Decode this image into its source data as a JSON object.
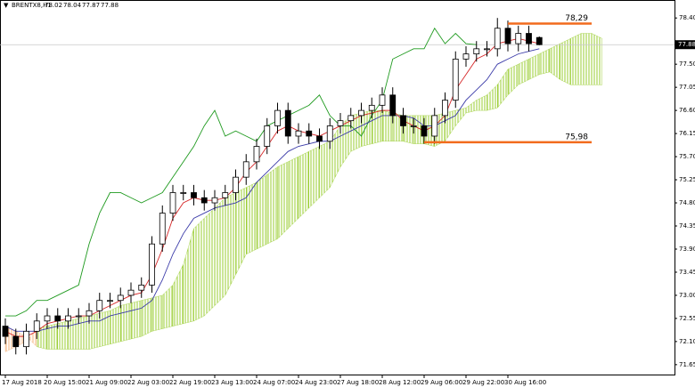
{
  "chart_data": {
    "type": "candlestick",
    "symbol": "BRENTX8,H1",
    "ohlc": [
      78.02,
      78.04,
      77.87,
      77.88
    ],
    "categories": [
      "17 Aug 2018",
      null,
      null,
      null,
      "20 Aug 15:00",
      null,
      null,
      null,
      "21 Aug 09:00",
      null,
      null,
      null,
      "22 Aug 03:00",
      null,
      null,
      null,
      "22 Aug 19:00",
      null,
      null,
      null,
      "23 Aug 13:00",
      null,
      null,
      null,
      "24 Aug 07:00",
      null,
      null,
      null,
      "24 Aug 23:00",
      null,
      null,
      null,
      "27 Aug 18:00",
      null,
      null,
      null,
      "28 Aug 12:00",
      null,
      null,
      null,
      "29 Aug 06:00",
      null,
      null,
      null,
      "29 Aug 22:00",
      null,
      null,
      null,
      "30 Aug 16:00",
      null,
      null,
      null,
      null,
      null,
      null,
      null,
      null,
      null
    ],
    "open": [
      72.4,
      72.2,
      72.0,
      72.3,
      72.5,
      72.6,
      72.5,
      72.6,
      72.6,
      72.7,
      72.9,
      72.9,
      73.0,
      73.1,
      73.2,
      74.0,
      74.6,
      75.0,
      75.0,
      74.9,
      74.8,
      74.9,
      75.0,
      75.3,
      75.6,
      75.9,
      76.3,
      76.6,
      76.1,
      76.2,
      76.1,
      76.0,
      76.3,
      76.4,
      76.5,
      76.6,
      76.7,
      76.9,
      76.5,
      76.3,
      76.3,
      76.1,
      76.5,
      76.8,
      77.6,
      77.7,
      77.8,
      77.8,
      78.2,
      77.9,
      78.1,
      78.02,
      null,
      null,
      null,
      null,
      null,
      null
    ],
    "high": [
      72.55,
      72.35,
      72.45,
      72.65,
      72.75,
      72.75,
      72.75,
      72.75,
      72.85,
      73.05,
      73.05,
      73.15,
      73.25,
      73.35,
      74.15,
      74.75,
      75.15,
      75.15,
      75.15,
      75.05,
      75.05,
      75.15,
      75.45,
      75.75,
      76.05,
      76.45,
      76.75,
      76.75,
      76.35,
      76.35,
      76.25,
      76.45,
      76.55,
      76.65,
      76.75,
      76.85,
      77.05,
      77.05,
      76.65,
      76.45,
      76.45,
      76.65,
      76.95,
      77.75,
      77.85,
      77.95,
      77.95,
      78.4,
      78.35,
      78.25,
      78.25,
      78.04,
      null,
      null,
      null,
      null,
      null,
      null
    ],
    "low": [
      72.05,
      71.85,
      71.85,
      72.15,
      72.35,
      72.35,
      72.35,
      72.45,
      72.45,
      72.55,
      72.75,
      72.75,
      72.85,
      72.95,
      73.05,
      73.85,
      74.45,
      74.85,
      74.75,
      74.65,
      74.65,
      74.75,
      74.85,
      75.15,
      75.45,
      75.75,
      76.15,
      75.95,
      75.95,
      75.95,
      75.85,
      75.85,
      76.15,
      76.25,
      76.35,
      76.45,
      76.55,
      76.35,
      76.15,
      76.15,
      75.95,
      75.95,
      76.35,
      76.65,
      77.45,
      77.55,
      77.65,
      77.65,
      77.75,
      77.75,
      77.75,
      77.87,
      null,
      null,
      null,
      null,
      null,
      null
    ],
    "close": [
      72.2,
      72.0,
      72.3,
      72.5,
      72.6,
      72.5,
      72.6,
      72.6,
      72.7,
      72.9,
      72.9,
      73.0,
      73.1,
      73.2,
      74.0,
      74.6,
      75.0,
      75.0,
      74.9,
      74.8,
      74.9,
      75.0,
      75.3,
      75.6,
      75.9,
      76.3,
      76.6,
      76.1,
      76.2,
      76.1,
      76.0,
      76.3,
      76.4,
      76.5,
      76.6,
      76.7,
      76.9,
      76.5,
      76.3,
      76.3,
      76.1,
      76.5,
      76.8,
      77.6,
      77.7,
      77.8,
      77.8,
      78.2,
      77.9,
      78.1,
      77.9,
      77.88,
      null,
      null,
      null,
      null,
      null,
      null
    ],
    "tenkan": {
      "color": "#d62728",
      "values": [
        72.3,
        72.2,
        72.2,
        72.3,
        72.45,
        72.5,
        72.55,
        72.6,
        72.6,
        72.7,
        72.8,
        72.9,
        73.0,
        73.05,
        73.4,
        73.9,
        74.5,
        74.8,
        74.9,
        74.85,
        74.85,
        74.9,
        75.1,
        75.4,
        75.6,
        75.9,
        76.2,
        76.3,
        76.2,
        76.15,
        76.1,
        76.2,
        76.3,
        76.4,
        76.5,
        76.55,
        76.6,
        76.6,
        76.4,
        76.3,
        76.2,
        76.3,
        76.5,
        77.0,
        77.3,
        77.6,
        77.7,
        77.9,
        77.95,
        78.0,
        77.95,
        77.9,
        null,
        null,
        null,
        null,
        null,
        null
      ]
    },
    "kijun": {
      "color": "#3a3aa8",
      "values": [
        72.4,
        72.3,
        72.3,
        72.3,
        72.35,
        72.4,
        72.4,
        72.45,
        72.5,
        72.5,
        72.6,
        72.65,
        72.7,
        72.75,
        72.9,
        73.3,
        73.8,
        74.2,
        74.5,
        74.6,
        74.7,
        74.75,
        74.8,
        74.9,
        75.2,
        75.4,
        75.6,
        75.8,
        75.9,
        75.95,
        76.0,
        76.0,
        76.1,
        76.2,
        76.3,
        76.4,
        76.5,
        76.5,
        76.5,
        76.45,
        76.3,
        76.3,
        76.4,
        76.5,
        76.8,
        77.0,
        77.2,
        77.5,
        77.6,
        77.7,
        77.75,
        77.8,
        null,
        null,
        null,
        null,
        null,
        null
      ]
    },
    "chikou": {
      "color": "#1f9a1f",
      "values": [
        72.6,
        72.6,
        72.7,
        72.9,
        72.9,
        73.0,
        73.1,
        73.2,
        74.0,
        74.6,
        75.0,
        75.0,
        74.9,
        74.8,
        74.9,
        75.0,
        75.3,
        75.6,
        75.9,
        76.3,
        76.6,
        76.1,
        76.2,
        76.1,
        76.0,
        76.3,
        76.4,
        76.5,
        76.6,
        76.7,
        76.9,
        76.5,
        76.3,
        76.3,
        76.1,
        76.5,
        76.8,
        77.6,
        77.7,
        77.8,
        77.8,
        78.2,
        77.9,
        78.1,
        77.9,
        77.88,
        null,
        null,
        null,
        null,
        null,
        null,
        null,
        null,
        null,
        null,
        null,
        null
      ]
    },
    "span_a": [
      71.9,
      72.0,
      72.1,
      72.35,
      72.4,
      72.45,
      72.5,
      72.55,
      72.6,
      72.65,
      72.7,
      72.8,
      72.85,
      72.9,
      72.95,
      73.0,
      73.2,
      73.6,
      74.3,
      74.5,
      74.7,
      74.9,
      75.0,
      75.1,
      75.2,
      75.35,
      75.5,
      75.6,
      75.7,
      75.8,
      75.9,
      76.0,
      76.3,
      76.5,
      76.55,
      76.6,
      76.6,
      76.55,
      76.5,
      76.5,
      76.5,
      76.5,
      76.55,
      76.6,
      76.65,
      76.8,
      76.9,
      77.1,
      77.4,
      77.5,
      77.6,
      77.7,
      77.8,
      77.9,
      78.0,
      78.1,
      78.1,
      78.0
    ],
    "span_b": [
      72.4,
      72.3,
      72.2,
      72.0,
      71.95,
      71.95,
      71.95,
      71.95,
      71.95,
      72.0,
      72.05,
      72.1,
      72.15,
      72.2,
      72.3,
      72.35,
      72.4,
      72.45,
      72.5,
      72.6,
      72.8,
      73.0,
      73.4,
      73.8,
      73.9,
      74.0,
      74.1,
      74.3,
      74.5,
      74.7,
      74.9,
      75.1,
      75.5,
      75.8,
      75.9,
      75.95,
      76.0,
      76.0,
      76.0,
      75.95,
      75.95,
      75.9,
      76.0,
      76.3,
      76.55,
      76.6,
      76.6,
      76.65,
      76.9,
      77.1,
      77.2,
      77.3,
      77.35,
      77.2,
      77.1,
      77.1,
      77.1,
      77.1
    ],
    "cloud_up_color": "#9acd32",
    "cloud_down_color": "#f4b27a",
    "levels": [
      {
        "value": 78.29,
        "label": "78,29",
        "from": 48,
        "to": 56,
        "color": "#f26b1d"
      },
      {
        "value": 75.98,
        "label": "75,98",
        "from": 40,
        "to": 56,
        "color": "#f26b1d"
      }
    ],
    "ylim": [
      71.44,
      78.75
    ],
    "yticks": [
      {
        "value": 71.65,
        "label": "71.65"
      },
      {
        "value": 72.1,
        "label": "72.10"
      },
      {
        "value": 72.55,
        "label": "72.55"
      },
      {
        "value": 73.0,
        "label": "73.00"
      },
      {
        "value": 73.45,
        "label": "73.45"
      },
      {
        "value": 73.9,
        "label": "73.90"
      },
      {
        "value": 74.35,
        "label": "74.35"
      },
      {
        "value": 74.8,
        "label": "74.80"
      },
      {
        "value": 75.25,
        "label": "75.25"
      },
      {
        "value": 75.7,
        "label": "75.70"
      },
      {
        "value": 76.15,
        "label": "76.15"
      },
      {
        "value": 76.6,
        "label": "76.60"
      },
      {
        "value": 77.05,
        "label": "77.05"
      },
      {
        "value": 77.5,
        "label": "77.50"
      },
      {
        "value": 78.4,
        "label": "78.40"
      }
    ]
  }
}
